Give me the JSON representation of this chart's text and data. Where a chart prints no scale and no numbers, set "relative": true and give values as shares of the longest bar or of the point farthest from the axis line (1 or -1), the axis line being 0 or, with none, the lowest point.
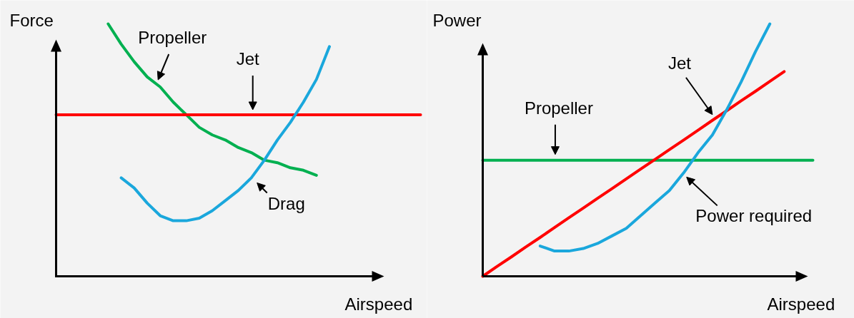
{
  "chart_data": [
    {
      "type": "line",
      "relative": true,
      "ylabel": "Force",
      "xlabel": "Airspeed",
      "categories": [
        null,
        null,
        null,
        null,
        null,
        null,
        null,
        null,
        null,
        null,
        null,
        null,
        null,
        null,
        null,
        null,
        null,
        null,
        null,
        null,
        null,
        null,
        null,
        null,
        null,
        null,
        null,
        null,
        null
      ],
      "series": [
        {
          "name": "Propeller",
          "color": "#00b050",
          "values": [
            null,
            null,
            null,
            null,
            1.0,
            0.92,
            0.85,
            0.79,
            0.75,
            0.69,
            0.64,
            0.59,
            0.56,
            0.54,
            0.51,
            0.49,
            0.46,
            0.45,
            0.43,
            0.42,
            0.4,
            null,
            null,
            null,
            null,
            null,
            null,
            null,
            null
          ]
        },
        {
          "name": "Jet",
          "color": "#ff0000",
          "values": [
            0.64,
            0.64,
            0.64,
            0.64,
            0.64,
            0.64,
            0.64,
            0.64,
            0.64,
            0.64,
            0.64,
            0.64,
            0.64,
            0.64,
            0.64,
            0.64,
            0.64,
            0.64,
            0.64,
            0.64,
            0.64,
            0.64,
            0.64,
            0.64,
            0.64,
            0.64,
            0.64,
            0.64,
            0.64
          ]
        },
        {
          "name": "Drag",
          "color": "#1aa7dc",
          "values": [
            null,
            null,
            null,
            null,
            null,
            0.39,
            0.35,
            0.29,
            0.24,
            0.22,
            0.22,
            0.23,
            0.26,
            0.3,
            0.34,
            0.39,
            0.46,
            0.54,
            0.61,
            0.69,
            0.78,
            0.91,
            null,
            null,
            null,
            null,
            null,
            null,
            null
          ]
        }
      ]
    },
    {
      "type": "line",
      "relative": true,
      "ylabel": "Power",
      "xlabel": "Airspeed",
      "categories": [
        null,
        null,
        null,
        null,
        null,
        null,
        null,
        null,
        null,
        null,
        null,
        null,
        null,
        null,
        null,
        null,
        null,
        null,
        null,
        null,
        null,
        null,
        null,
        null
      ],
      "series": [
        {
          "name": "Propeller",
          "color": "#00b050",
          "values": [
            0.46,
            0.46,
            0.46,
            0.46,
            0.46,
            0.46,
            0.46,
            0.46,
            0.46,
            0.46,
            0.46,
            0.46,
            0.46,
            0.46,
            0.46,
            0.46,
            0.46,
            0.46,
            0.46,
            0.46,
            0.46,
            0.46,
            0.46,
            0.46
          ]
        },
        {
          "name": "Jet",
          "color": "#ff0000",
          "values": [
            0.0,
            0.039,
            0.077,
            0.116,
            0.154,
            0.193,
            0.232,
            0.27,
            0.309,
            0.347,
            0.386,
            0.425,
            0.463,
            0.502,
            0.54,
            0.579,
            0.618,
            0.656,
            0.695,
            0.733,
            0.772,
            0.811,
            null,
            null
          ]
        },
        {
          "name": "Power required",
          "color": "#1aa7dc",
          "values": [
            null,
            null,
            null,
            null,
            0.12,
            0.1,
            0.1,
            0.11,
            0.13,
            0.16,
            0.19,
            0.24,
            0.29,
            0.34,
            0.41,
            0.49,
            0.56,
            0.66,
            0.77,
            0.89,
            1.0,
            null,
            null,
            null
          ]
        }
      ]
    }
  ]
}
